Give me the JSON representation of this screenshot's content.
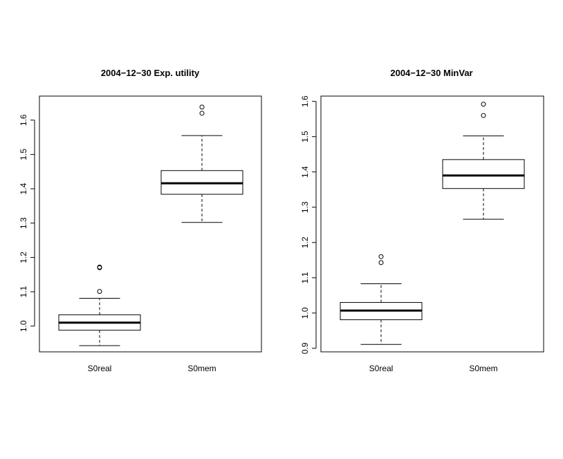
{
  "chart_data": [
    {
      "type": "box",
      "title": "2004−12−30 Exp. utility",
      "categories": [
        "S0real",
        "S0mem"
      ],
      "ylim": [
        0.925,
        1.67
      ],
      "yticks": [
        "1.0",
        "1.1",
        "1.2",
        "1.3",
        "1.4",
        "1.5",
        "1.6"
      ],
      "grid": false,
      "boxes": [
        {
          "name": "S0real",
          "whisker_low": 0.943,
          "q1": 0.988,
          "median": 1.01,
          "q3": 1.033,
          "whisker_high": 1.081,
          "outliers": [
            1.101,
            1.17,
            1.172
          ]
        },
        {
          "name": "S0mem",
          "whisker_low": 1.302,
          "q1": 1.384,
          "median": 1.416,
          "q3": 1.453,
          "whisker_high": 1.555,
          "outliers": [
            1.62,
            1.638
          ]
        }
      ]
    },
    {
      "type": "box",
      "title": "2004−12−30 MinVar",
      "categories": [
        "S0real",
        "S0mem"
      ],
      "ylim": [
        0.89,
        1.615
      ],
      "yticks": [
        "0.9",
        "1.0",
        "1.1",
        "1.2",
        "1.3",
        "1.4",
        "1.5",
        "1.6"
      ],
      "grid": false,
      "boxes": [
        {
          "name": "S0real",
          "whisker_low": 0.911,
          "q1": 0.981,
          "median": 1.007,
          "q3": 1.03,
          "whisker_high": 1.083,
          "outliers": [
            1.143,
            1.16
          ]
        },
        {
          "name": "S0mem",
          "whisker_low": 1.266,
          "q1": 1.353,
          "median": 1.39,
          "q3": 1.435,
          "whisker_high": 1.502,
          "outliers": [
            1.56,
            1.592
          ]
        }
      ]
    }
  ]
}
